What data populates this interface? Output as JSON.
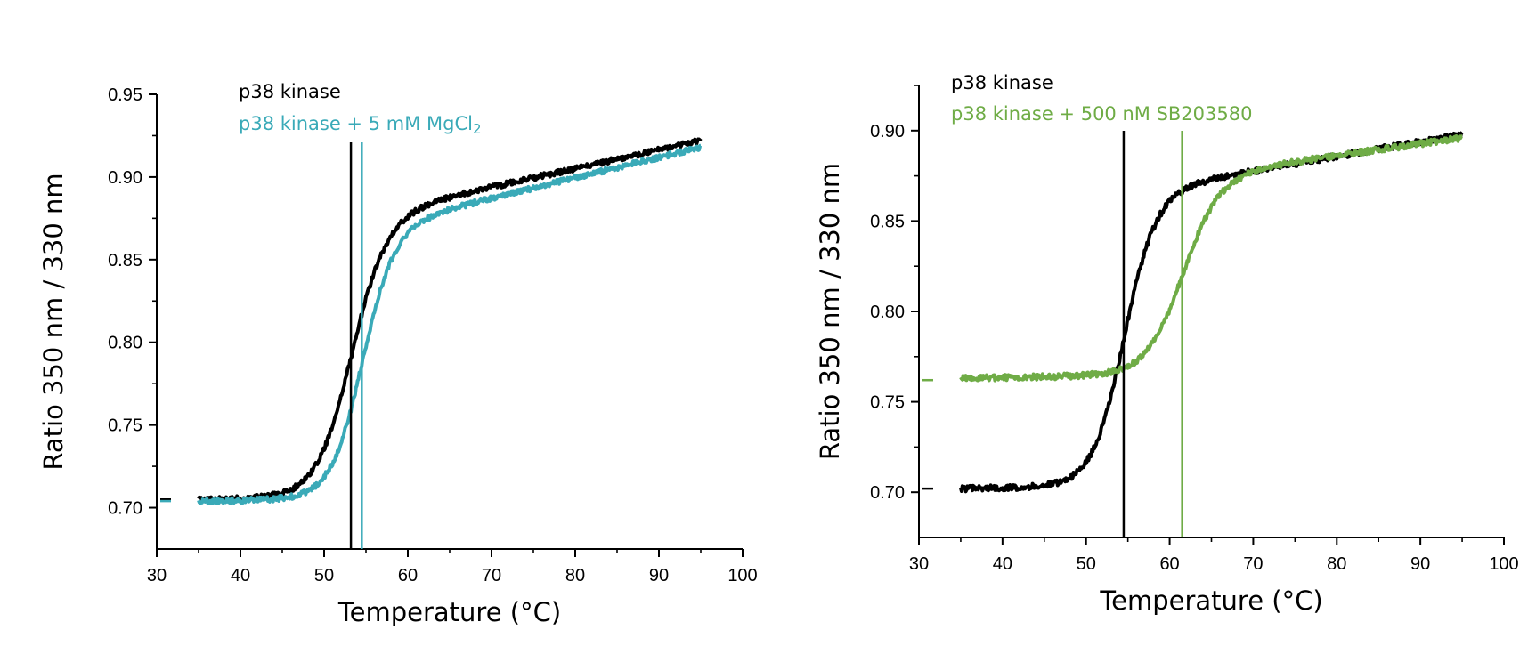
{
  "chart_data": [
    {
      "type": "line",
      "xlabel": "Temperature (°C)",
      "ylabel": "Ratio 350 nm / 330 nm",
      "xlim": [
        30,
        100
      ],
      "ylim": [
        0.675,
        0.95
      ],
      "xticks": [
        30,
        40,
        50,
        60,
        70,
        80,
        90,
        100
      ],
      "yticks": [
        0.7,
        0.75,
        0.8,
        0.85,
        0.9,
        0.95
      ],
      "grid": false,
      "legend_placement": "top-left",
      "legend": [
        {
          "label": "p38 kinase",
          "color": "#000000"
        },
        {
          "label": "p38 kinase + 5 mM MgCl",
          "sub": "2",
          "color": "#3aaab8"
        }
      ],
      "series": [
        {
          "name": "p38 kinase",
          "color": "#000000",
          "x_range": [
            35,
            95
          ],
          "baseline": 0.705,
          "plateau_start": 0.875,
          "plateau_end": 0.922,
          "tm": 53.2,
          "width": 2.1
        },
        {
          "name": "p38 kinase + 5 mM MgCl2",
          "color": "#3aaab8",
          "x_range": [
            35,
            95
          ],
          "baseline": 0.704,
          "plateau_start": 0.868,
          "plateau_end": 0.918,
          "tm": 54.5,
          "width": 1.9
        }
      ],
      "vlines": [
        {
          "x": 53.2,
          "color": "#000000"
        },
        {
          "x": 54.5,
          "color": "#3aaab8"
        }
      ],
      "start_markers": [
        {
          "y": 0.705,
          "color": "#000000"
        },
        {
          "y": 0.704,
          "color": "#3aaab8"
        }
      ]
    },
    {
      "type": "line",
      "xlabel": "Temperature (°C)",
      "ylabel": "Ratio 350 nm / 330 nm",
      "xlim": [
        30,
        100
      ],
      "ylim": [
        0.675,
        0.925
      ],
      "xticks": [
        30,
        40,
        50,
        60,
        70,
        80,
        90,
        100
      ],
      "yticks": [
        0.7,
        0.75,
        0.8,
        0.85,
        0.9
      ],
      "grid": false,
      "legend_placement": "top-left",
      "legend": [
        {
          "label": "p38 kinase",
          "color": "#000000"
        },
        {
          "label": "p38 kinase + 500 nM  SB203580",
          "color": "#6fac46"
        }
      ],
      "series": [
        {
          "name": "p38 kinase",
          "color": "#000000",
          "x_range": [
            35,
            95
          ],
          "baseline": 0.702,
          "plateau_start": 0.865,
          "plateau_end": 0.898,
          "tm": 54.5,
          "width": 1.9
        },
        {
          "name": "p38 kinase + 500 nM SB203580",
          "color": "#6fac46",
          "x_range": [
            35,
            95
          ],
          "baseline": 0.763,
          "plateau_start": 0.874,
          "plateau_end": 0.896,
          "tm": 61.5,
          "width": 2.2
        }
      ],
      "vlines": [
        {
          "x": 54.5,
          "color": "#000000"
        },
        {
          "x": 61.5,
          "color": "#6fac46"
        }
      ],
      "start_markers": [
        {
          "y": 0.762,
          "color": "#6fac46"
        },
        {
          "y": 0.702,
          "color": "#000000"
        }
      ]
    }
  ]
}
